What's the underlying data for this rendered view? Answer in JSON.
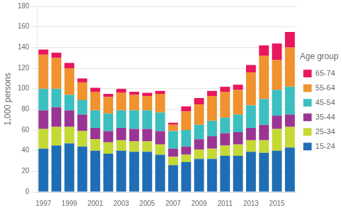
{
  "chart_data": {
    "type": "bar",
    "stacked": true,
    "categories": [
      "1997",
      null,
      "1999",
      null,
      "2001",
      null,
      "2003",
      null,
      "2005",
      null,
      "2007",
      null,
      "2009",
      null,
      "2011",
      null,
      "2013",
      null,
      "2015",
      null
    ],
    "series": [
      {
        "name": "15-24",
        "color": "#1f6eb5",
        "values": [
          42,
          45,
          47,
          44,
          40,
          37,
          40,
          39,
          39,
          36,
          26,
          29,
          32,
          32,
          35,
          35,
          39,
          38,
          40,
          43
        ]
      },
      {
        "name": "25-34",
        "color": "#c5d935",
        "values": [
          19,
          18,
          16,
          15,
          11,
          11,
          10,
          10,
          10,
          10,
          8,
          7,
          9,
          10,
          10,
          11,
          11,
          12,
          21,
          20
        ]
      },
      {
        "name": "35-44",
        "color": "#9b3593",
        "values": [
          18,
          19,
          16,
          16,
          11,
          11,
          12,
          12,
          12,
          13,
          8,
          8,
          10,
          12,
          12,
          12,
          12,
          15,
          13,
          12
        ]
      },
      {
        "name": "45-54",
        "color": "#3bbfbf",
        "values": [
          21,
          18,
          15,
          14,
          17,
          17,
          17,
          18,
          18,
          18,
          17,
          16,
          14,
          15,
          15,
          17,
          22,
          25,
          25,
          27
        ]
      },
      {
        "name": "55-64",
        "color": "#f0922e",
        "values": [
          33,
          30,
          26,
          17,
          18,
          16,
          17,
          15,
          14,
          18,
          6,
          18,
          20,
          24,
          25,
          24,
          32,
          42,
          29,
          38
        ]
      },
      {
        "name": "65-74",
        "color": "#e8175e",
        "values": [
          5,
          5,
          5,
          4,
          4,
          3,
          4,
          3,
          3,
          3,
          2,
          5,
          6,
          5,
          5,
          5,
          7,
          10,
          16,
          15
        ]
      }
    ],
    "ylabel": "1,000 persons",
    "legend_title": "Age group",
    "legend": "right",
    "ylim": [
      0,
      180
    ],
    "yticks": [
      0,
      20,
      40,
      60,
      80,
      100,
      120,
      140,
      160,
      180
    ],
    "grid": true
  }
}
